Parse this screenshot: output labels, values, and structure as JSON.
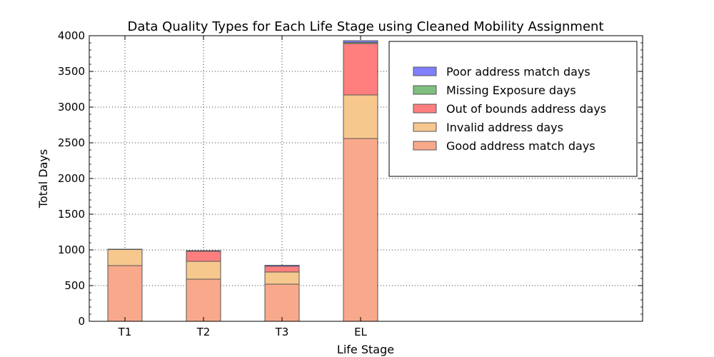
{
  "chart_data": {
    "type": "bar",
    "stacked": true,
    "title": "Data Quality Types for Each Life Stage using Cleaned Mobility Assignment",
    "xlabel": "Life Stage",
    "ylabel": "Total Days",
    "ylim": [
      0,
      4000
    ],
    "yticks": [
      0,
      500,
      1000,
      1500,
      2000,
      2500,
      3000,
      3500,
      4000
    ],
    "categories": [
      "T1",
      "T2",
      "T3",
      "EL"
    ],
    "grid": true,
    "legend_position": "top-right",
    "series": [
      {
        "name": "Good address match days",
        "color": "#f9a98b",
        "values": [
          780,
          590,
          520,
          2560
        ]
      },
      {
        "name": "Invalid address days",
        "color": "#f7c88d",
        "values": [
          225,
          250,
          170,
          610
        ]
      },
      {
        "name": "Out of bounds address days",
        "color": "#ff7f7f",
        "values": [
          0,
          140,
          80,
          720
        ]
      },
      {
        "name": "Missing Exposure days",
        "color": "#7fbf7f",
        "values": [
          0,
          0,
          0,
          15
        ]
      },
      {
        "name": "Poor address match days",
        "color": "#7f7fff",
        "values": [
          5,
          10,
          15,
          25
        ]
      }
    ],
    "legend_order": [
      "Poor address match days",
      "Missing Exposure days",
      "Out of bounds address days",
      "Invalid address days",
      "Good address match days"
    ]
  }
}
